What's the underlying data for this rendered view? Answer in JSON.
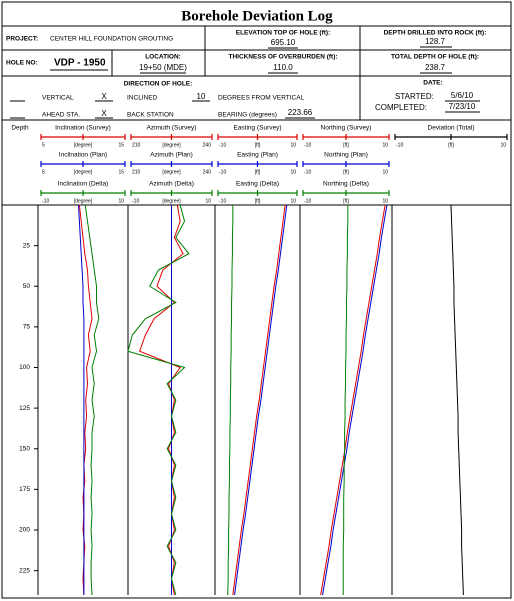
{
  "form": {
    "title": "Borehole Deviation Log",
    "project": {
      "label": "PROJECT:",
      "value": "CENTER HILL FOUNDATION GROUTING"
    },
    "elevation": {
      "label": "ELEVATION TOP OF HOLE (ft):",
      "value": "695.10"
    },
    "depth_rock": {
      "label": "DEPTH DRILLED INTO ROCK (ft):",
      "value": "128.7"
    },
    "hole_no": {
      "label": "HOLE NO:",
      "value": "VDP - 1950"
    },
    "location": {
      "label": "LOCATION:",
      "value": "19+50 (MDE)"
    },
    "overburden": {
      "label": "THICKNESS OF OVERBURDEN (ft):",
      "value": "110.0"
    },
    "total_depth": {
      "label": "TOTAL DEPTH OF HOLE (ft):",
      "value": "238.7"
    },
    "direction": {
      "label": "DIRECTION OF HOLE:",
      "vertical": "VERTICAL",
      "inclined_mark": "X",
      "inclined": "INCLINED",
      "angle": "10",
      "degrees": "DEGREES FROM VERTICAL",
      "ahead": "AHEAD STA.",
      "back_mark": "X",
      "back": "BACK STATION",
      "bearing_label": "BEARING (degrees)",
      "bearing": "223.66"
    },
    "date": {
      "label": "DATE:",
      "started_label": "STARTED:",
      "started": "5/6/10",
      "completed_label": "COMPLETED:",
      "completed": "7/23/10"
    }
  },
  "chart_data": {
    "type": "log",
    "depth_label": "Depth",
    "ylim": [
      0,
      240
    ],
    "yticks": [
      25,
      50,
      75,
      100,
      125,
      150,
      175,
      200,
      225
    ],
    "depths": [
      0,
      10,
      20,
      30,
      40,
      50,
      60,
      70,
      80,
      90,
      100,
      110,
      120,
      130,
      140,
      150,
      160,
      170,
      180,
      190,
      200,
      210,
      220,
      230,
      240
    ],
    "tracks": [
      {
        "curves": [
          {
            "name": "Inclination (Survey)",
            "color": "#e00000",
            "xlim": [
              5,
              15
            ],
            "unit": "[degree]",
            "values": [
              9.6,
              9.8,
              10,
              10.2,
              10.5,
              10.6,
              10.8,
              11,
              10.6,
              10.8,
              10.4,
              10.5,
              10.3,
              10.4,
              10.2,
              10.3,
              10.1,
              10.2,
              10.0,
              10.1,
              10.0,
              10.2,
              10.1,
              10.0,
              10.1
            ]
          },
          {
            "name": "Inclination (Plan)",
            "color": "#0000d0",
            "xlim": [
              5,
              15
            ],
            "unit": "[degree]",
            "values": [
              9.5,
              9.6,
              9.7,
              9.8,
              9.9,
              10,
              10,
              10.1,
              10.1,
              10.1,
              10.1,
              10.1,
              10.1,
              10.1,
              10.1,
              10.1,
              10.1,
              10.1,
              10.1,
              10.1,
              10.1,
              10.1,
              10.1,
              10.1,
              10.1
            ]
          },
          {
            "name": "Inclination (Delta)",
            "color": "#008000",
            "xlim": [
              -10,
              10
            ],
            "unit": "[degree]",
            "values": [
              0.5,
              1,
              1.5,
              2,
              2.5,
              3,
              3,
              3.5,
              2.5,
              3,
              2,
              2.5,
              2,
              2.5,
              2,
              2,
              1.8,
              2,
              1.8,
              2,
              1.8,
              2,
              1.8,
              1.8,
              2
            ]
          }
        ]
      },
      {
        "curves": [
          {
            "name": "Azimuth (Survey)",
            "color": "#e00000",
            "xlim": [
              210,
              240
            ],
            "unit": "[degree]",
            "values": [
              227,
              228,
              226,
              229,
              222,
              220,
              226,
              219,
              216,
              214,
              228,
              224,
              226,
              225,
              226,
              224,
              226,
              225,
              226,
              225,
              226,
              224,
              226,
              225,
              226
            ]
          },
          {
            "name": "Azimuth (Plan)",
            "color": "#0000d0",
            "xlim": [
              210,
              240
            ],
            "unit": "[degree]",
            "values": [
              225,
              225,
              225,
              225,
              225,
              225,
              225,
              225,
              225,
              225,
              225,
              225,
              225,
              225,
              225,
              225,
              225,
              225,
              225,
              225,
              225,
              225,
              225,
              225,
              225
            ]
          },
          {
            "name": "Azimuth (Delta)",
            "color": "#008000",
            "xlim": [
              -10,
              10
            ],
            "unit": "[degree]",
            "values": [
              2,
              3,
              1,
              4,
              -3,
              -5,
              1,
              -6,
              -9,
              -10,
              3,
              -1,
              1,
              0,
              1,
              -1,
              1,
              0,
              1,
              0,
              1,
              -1,
              1,
              0,
              1
            ]
          }
        ]
      },
      {
        "curves": [
          {
            "name": "Easting (Survey)",
            "color": "#e00000",
            "xlim": [
              -10,
              10
            ],
            "unit": "[ft]",
            "values": [
              6.5,
              6.0,
              5.5,
              5.0,
              4.5,
              3.9,
              3.4,
              2.9,
              2.4,
              1.9,
              1.4,
              0.9,
              0.4,
              -0.2,
              -0.7,
              -1.2,
              -1.7,
              -2.2,
              -2.7,
              -3.2,
              -3.8,
              -4.3,
              -4.8,
              -5.3,
              -5.8
            ]
          },
          {
            "name": "Easting (Plan)",
            "color": "#0000d0",
            "xlim": [
              -10,
              10
            ],
            "unit": "[ft]",
            "values": [
              6.9,
              6.4,
              5.9,
              5.4,
              4.9,
              4.3,
              3.8,
              3.3,
              2.8,
              2.3,
              1.8,
              1.3,
              0.8,
              0.2,
              -0.3,
              -0.8,
              -1.3,
              -1.8,
              -2.3,
              -2.8,
              -3.4,
              -3.9,
              -4.4,
              -4.9,
              -5.4
            ]
          },
          {
            "name": "Easting (Delta)",
            "color": "#008000",
            "xlim": [
              -10,
              10
            ],
            "unit": "[ft]",
            "values": [
              -5.8,
              -5.8,
              -5.9,
              -5.9,
              -6.0,
              -6.0,
              -6.1,
              -6.1,
              -6.2,
              -6.2,
              -6.3,
              -6.3,
              -6.4,
              -6.4,
              -6.5,
              -6.5,
              -6.6,
              -6.6,
              -6.7,
              -6.7,
              -6.8,
              -6.8,
              -6.9,
              -6.9,
              -7.0
            ]
          }
        ]
      },
      {
        "curves": [
          {
            "name": "Northing (Survey)",
            "color": "#e00000",
            "xlim": [
              -10,
              10
            ],
            "unit": "[ft]",
            "values": [
              8.5,
              7.9,
              7.3,
              6.8,
              6.2,
              5.6,
              5.0,
              4.4,
              3.8,
              3.3,
              2.7,
              2.1,
              1.5,
              0.9,
              0.3,
              -0.2,
              -0.8,
              -1.4,
              -2.0,
              -2.6,
              -3.2,
              -3.7,
              -4.3,
              -4.9,
              -5.5
            ]
          },
          {
            "name": "Northing (Plan)",
            "color": "#0000d0",
            "xlim": [
              -10,
              10
            ],
            "unit": "[ft]",
            "values": [
              8.9,
              8.3,
              7.7,
              7.2,
              6.6,
              6.0,
              5.4,
              4.8,
              4.2,
              3.7,
              3.1,
              2.5,
              1.9,
              1.3,
              0.7,
              0.2,
              -0.4,
              -1.0,
              -1.6,
              -2.2,
              -2.8,
              -3.3,
              -3.9,
              -4.5,
              -5.1
            ]
          },
          {
            "name": "Northing (Delta)",
            "color": "#008000",
            "xlim": [
              -10,
              10
            ],
            "unit": "[ft]",
            "values": [
              0.4,
              0.4,
              0.3,
              0.3,
              0.2,
              0.2,
              0.1,
              0.1,
              0,
              0,
              -0.1,
              -0.1,
              -0.2,
              -0.2,
              -0.3,
              -0.3,
              -0.4,
              -0.4,
              -0.5,
              -0.5,
              -0.5,
              -0.6,
              -0.6,
              -0.6,
              -0.6
            ]
          }
        ]
      },
      {
        "curves": [
          {
            "name": "Deviation (Total)",
            "color": "#000000",
            "xlim": [
              -10,
              10
            ],
            "unit": "[ft]",
            "values": [
              0,
              0.1,
              0.2,
              0.3,
              0.4,
              0.5,
              0.5,
              0.6,
              0.7,
              0.8,
              0.9,
              1.0,
              1.1,
              1.2,
              1.2,
              1.3,
              1.4,
              1.5,
              1.6,
              1.7,
              1.8,
              1.8,
              1.9,
              2.0,
              2.1
            ]
          }
        ]
      }
    ]
  }
}
